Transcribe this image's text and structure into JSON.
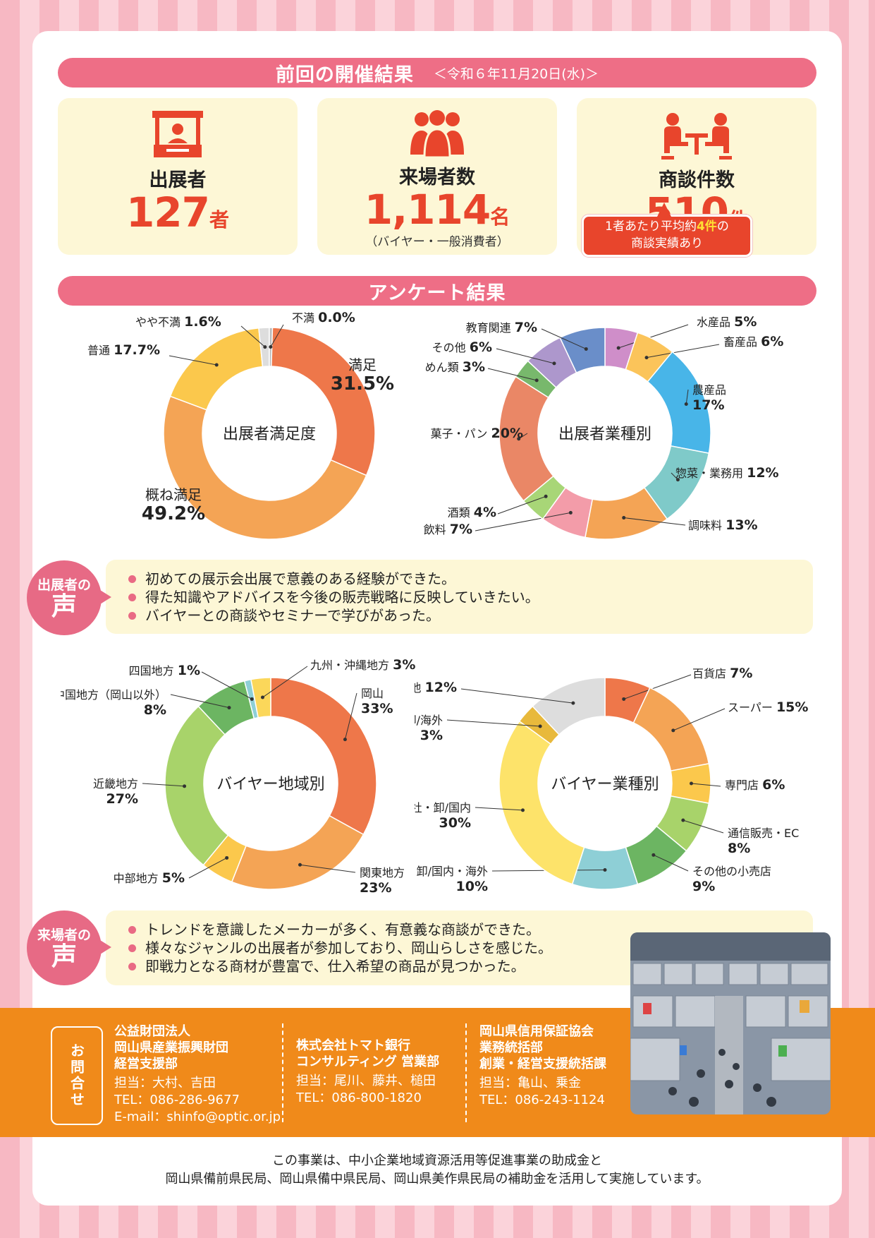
{
  "results": {
    "title": "前回の開催結果",
    "date": "＜令和６年11月20日(水)＞",
    "stats": [
      {
        "label": "出展者",
        "value": "127",
        "unit": "者",
        "note": "",
        "icon": "booth-icon"
      },
      {
        "label": "来場者数",
        "value": "1,114",
        "unit": "名",
        "note": "（バイヤー・一般消費者）",
        "icon": "people-icon"
      },
      {
        "label": "商談件数",
        "value": "510",
        "unit": "件",
        "note": "",
        "icon": "meeting-icon"
      }
    ],
    "callout": {
      "line1_a": "1者あたり平均約",
      "line1_hl": "4件",
      "line1_b": "の",
      "line2": "商談実績あり"
    }
  },
  "survey": {
    "title": "アンケート結果"
  },
  "chart_data": [
    {
      "type": "pie",
      "title": "出展者満足度",
      "labels": [
        "満足",
        "概ね満足",
        "普通",
        "やや不満",
        "不満"
      ],
      "display": [
        "31.5%",
        "49.2%",
        "17.7%",
        "1.6%",
        "0.0%"
      ],
      "values": [
        31.5,
        49.2,
        17.7,
        1.6,
        0.0
      ],
      "colors": [
        "#ee774a",
        "#f4a455",
        "#fbc84c",
        "#dddddd",
        "#bbbbbb"
      ]
    },
    {
      "type": "pie",
      "title": "出展者業種別",
      "labels": [
        "水産品",
        "畜産品",
        "農産品",
        "惣菜・業務用",
        "調味料",
        "飲料",
        "酒類",
        "菓子・パン",
        "めん類",
        "その他",
        "教育関連"
      ],
      "display": [
        "5%",
        "6%",
        "17%",
        "12%",
        "13%",
        "7%",
        "4%",
        "20%",
        "3%",
        "6%",
        "7%"
      ],
      "values": [
        5,
        6,
        17,
        12,
        13,
        7,
        4,
        20,
        3,
        6,
        7
      ],
      "colors": [
        "#cf8ec9",
        "#fbc45a",
        "#48b5e8",
        "#7fcac9",
        "#f4a455",
        "#f39ca9",
        "#a8d677",
        "#ea8766",
        "#78b86c",
        "#ad97cc",
        "#6a8ec9"
      ]
    },
    {
      "type": "pie",
      "title": "バイヤー地域別",
      "labels": [
        "岡山",
        "関東地方",
        "中部地方",
        "近畿地方",
        "中国地方（岡山以外）",
        "四国地方",
        "九州・沖縄地方"
      ],
      "display": [
        "33%",
        "23%",
        "5%",
        "27%",
        "8%",
        "1%",
        "3%"
      ],
      "values": [
        33,
        23,
        5,
        27,
        8,
        1,
        3
      ],
      "colors": [
        "#ee774a",
        "#f4a455",
        "#fbc84c",
        "#a8d36a",
        "#6cb562",
        "#8ecfd6",
        "#fbd75a"
      ]
    },
    {
      "type": "pie",
      "title": "バイヤー業種別",
      "labels": [
        "百貨店",
        "スーパー",
        "専門店",
        "通信販売・EC",
        "その他の小売店",
        "商社・卸/国内・海外",
        "商社・卸/国内",
        "商社・卸/海外",
        "その他"
      ],
      "display": [
        "7%",
        "15%",
        "6%",
        "8%",
        "9%",
        "10%",
        "30%",
        "3%",
        "12%"
      ],
      "values": [
        7,
        15,
        6,
        8,
        9,
        10,
        30,
        3,
        12
      ],
      "colors": [
        "#ee774a",
        "#f4a455",
        "#fbc84c",
        "#a8d36a",
        "#6cb562",
        "#8ecfd6",
        "#fde36a",
        "#e8b93c",
        "#dddddd"
      ]
    }
  ],
  "exhibitor_voice": {
    "badge_small": "出展者の",
    "badge_big": "声",
    "items": [
      "初めての展示会出展で意義のある経験ができた。",
      "得た知識やアドバイスを今後の販売戦略に反映していきたい。",
      "バイヤーとの商談やセミナーで学びがあった。"
    ]
  },
  "visitor_voice": {
    "badge_small": "来場者の",
    "badge_big": "声",
    "items": [
      "トレンドを意識したメーカーが多く、有意義な商談ができた。",
      "様々なジャンルの出展者が参加しており、岡山らしさを感じた。",
      "即戦力となる商材が豊富で、仕入希望の商品が見つかった。"
    ]
  },
  "contact": {
    "tag": "お問合せ",
    "orgs": [
      {
        "lines": [
          "公益財団法人",
          "岡山県産業振興財団",
          "経営支援部"
        ],
        "person": "担当：大村、吉田",
        "tel": "TEL：086-286-9677",
        "email": "E-mail：shinfo@optic.or.jp"
      },
      {
        "lines": [
          "株式会社トマト銀行",
          "コンサルティング 営業部"
        ],
        "person": "担当：尾川、藤井、槌田",
        "tel": "TEL：086-800-1820",
        "email": ""
      },
      {
        "lines": [
          "岡山県信用保証協会",
          "業務統括部",
          "創業・経営支援統括課"
        ],
        "person": "担当：亀山、乗金",
        "tel": "TEL：086-243-1124",
        "email": ""
      }
    ]
  },
  "footnote": {
    "line1": "この事業は、中小企業地域資源活用等促進事業の助成金と",
    "line2": "岡山県備前県民局、岡山県備中県民局、岡山県美作県民局の補助金を活用して実施しています。"
  }
}
